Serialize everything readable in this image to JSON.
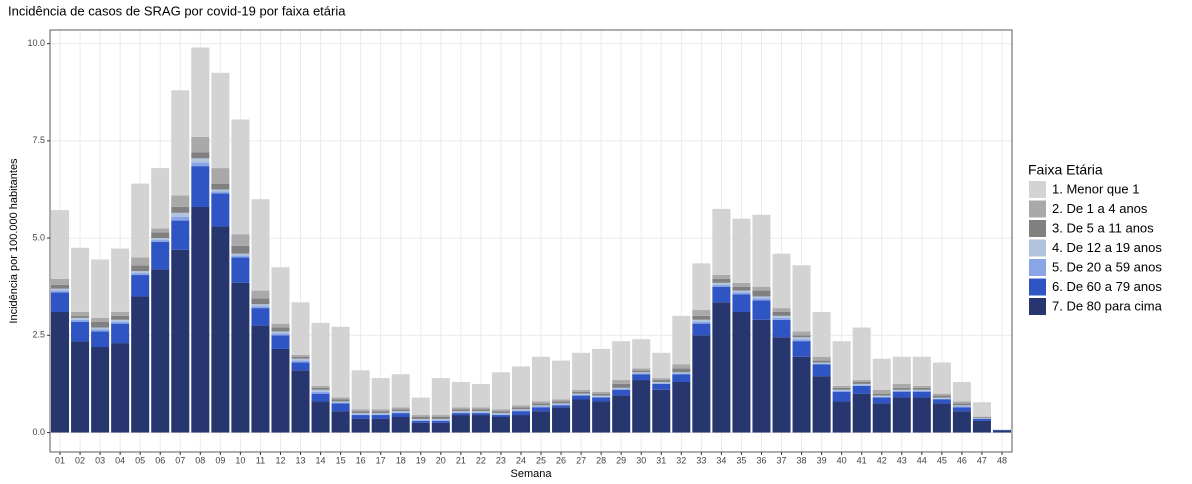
{
  "chart_data": {
    "type": "stacked-bar",
    "title": "Incidência de casos de SRAG por covid-19 por faixa etária",
    "x_label": "Semana",
    "y_label": "Incidência por 100.000 habitantes",
    "legend_title": "Faixa Etária",
    "legend": "right",
    "grid": true,
    "categories": [
      "01",
      "02",
      "03",
      "04",
      "05",
      "06",
      "07",
      "08",
      "09",
      "10",
      "11",
      "12",
      "13",
      "14",
      "15",
      "16",
      "17",
      "18",
      "19",
      "20",
      "21",
      "22",
      "23",
      "24",
      "25",
      "26",
      "27",
      "28",
      "29",
      "30",
      "31",
      "32",
      "33",
      "34",
      "35",
      "36",
      "37",
      "38",
      "39",
      "40",
      "41",
      "42",
      "43",
      "44",
      "45",
      "46",
      "47",
      "48"
    ],
    "ylim": [
      -0.5,
      10.35
    ],
    "yticks": [
      {
        "value": 0,
        "label": "0.0"
      },
      {
        "value": 2.5,
        "label": "2.5"
      },
      {
        "value": 5,
        "label": "5.0"
      },
      {
        "value": 7.5,
        "label": "7.5"
      },
      {
        "value": 10,
        "label": "10.0"
      }
    ],
    "series": [
      {
        "name": "1. Menor que 1",
        "color": "#d3d3d3",
        "values": [
          1.77,
          1.65,
          1.5,
          1.63,
          1.9,
          1.55,
          2.7,
          2.3,
          2.45,
          2.95,
          2.35,
          1.45,
          1.35,
          1.62,
          1.82,
          1.0,
          0.8,
          0.85,
          0.45,
          0.95,
          0.65,
          0.6,
          0.95,
          1.0,
          1.15,
          1.0,
          0.95,
          1.1,
          1.0,
          0.75,
          0.65,
          1.25,
          1.2,
          1.7,
          1.65,
          1.85,
          1.4,
          1.7,
          1.15,
          1.15,
          1.35,
          0.8,
          0.7,
          0.75,
          0.8,
          0.5,
          0.37,
          0.01
        ]
      },
      {
        "name": "2. De 1 a 4 anos",
        "color": "#a9a9a9",
        "values": [
          0.15,
          0.1,
          0.1,
          0.1,
          0.2,
          0.1,
          0.3,
          0.4,
          0.4,
          0.3,
          0.2,
          0.1,
          0.05,
          0.05,
          0.05,
          0.05,
          0.05,
          0.05,
          0.05,
          0.05,
          0.05,
          0.05,
          0.05,
          0.05,
          0.05,
          0.05,
          0.05,
          0.05,
          0.1,
          0.05,
          0.05,
          0.1,
          0.15,
          0.1,
          0.1,
          0.1,
          0.1,
          0.1,
          0.1,
          0.05,
          0.05,
          0.1,
          0.1,
          0.05,
          0.05,
          0.05,
          0.02,
          0
        ]
      },
      {
        "name": "3. De 5 a 11 anos",
        "color": "#808080",
        "values": [
          0.1,
          0.05,
          0.15,
          0.1,
          0.15,
          0.15,
          0.15,
          0.15,
          0.15,
          0.2,
          0.15,
          0.1,
          0.05,
          0.05,
          0.05,
          0.05,
          0.05,
          0.05,
          0.05,
          0.05,
          0.05,
          0.05,
          0.05,
          0.05,
          0.05,
          0.05,
          0.05,
          0.05,
          0.1,
          0.05,
          0.05,
          0.1,
          0.1,
          0.1,
          0.1,
          0.15,
          0.1,
          0.05,
          0.05,
          0.05,
          0.05,
          0.05,
          0.05,
          0.05,
          0.05,
          0.05,
          0.02,
          0
        ]
      },
      {
        "name": "4. De 12 a 19 anos",
        "color": "#b0c4de",
        "values": [
          0.05,
          0.05,
          0.05,
          0.05,
          0.05,
          0.05,
          0.1,
          0.1,
          0.05,
          0.05,
          0.05,
          0.05,
          0.05,
          0.05,
          0.03,
          0.03,
          0.03,
          0.03,
          0.03,
          0.03,
          0.03,
          0.03,
          0.03,
          0.03,
          0.03,
          0.03,
          0.03,
          0.03,
          0.03,
          0.03,
          0.03,
          0.03,
          0.05,
          0.05,
          0.05,
          0.05,
          0.05,
          0.05,
          0.03,
          0.03,
          0.03,
          0.03,
          0.03,
          0.03,
          0.03,
          0.03,
          0.01,
          0
        ]
      },
      {
        "name": "5. De 20 a 59 anos",
        "color": "#8aa5e6",
        "values": [
          0.05,
          0.05,
          0.05,
          0.05,
          0.05,
          0.05,
          0.1,
          0.1,
          0.05,
          0.05,
          0.05,
          0.05,
          0.05,
          0.05,
          0.02,
          0.02,
          0.02,
          0.02,
          0.02,
          0.02,
          0.02,
          0.02,
          0.02,
          0.02,
          0.02,
          0.02,
          0.02,
          0.02,
          0.02,
          0.02,
          0.02,
          0.02,
          0.05,
          0.05,
          0.05,
          0.05,
          0.05,
          0.05,
          0.02,
          0.02,
          0.02,
          0.02,
          0.02,
          0.02,
          0.02,
          0.02,
          0.01,
          0
        ]
      },
      {
        "name": "6. De 60 a 79 anos",
        "color": "#2f55c4",
        "values": [
          0.5,
          0.5,
          0.4,
          0.5,
          0.55,
          0.7,
          0.75,
          1.05,
          0.85,
          0.65,
          0.45,
          0.35,
          0.2,
          0.2,
          0.2,
          0.1,
          0.1,
          0.1,
          0.05,
          0.05,
          0.05,
          0.05,
          0.05,
          0.1,
          0.1,
          0.05,
          0.1,
          0.1,
          0.15,
          0.15,
          0.15,
          0.2,
          0.3,
          0.4,
          0.45,
          0.5,
          0.45,
          0.4,
          0.3,
          0.25,
          0.2,
          0.15,
          0.15,
          0.15,
          0.1,
          0.1,
          0.05,
          0.02
        ]
      },
      {
        "name": "7. De 80 para cima",
        "color": "#283670",
        "values": [
          3.1,
          2.35,
          2.2,
          2.3,
          3.5,
          4.2,
          4.7,
          5.8,
          5.3,
          3.85,
          2.75,
          2.15,
          1.6,
          0.8,
          0.55,
          0.35,
          0.35,
          0.4,
          0.25,
          0.25,
          0.45,
          0.45,
          0.4,
          0.45,
          0.55,
          0.65,
          0.85,
          0.8,
          0.95,
          1.35,
          1.1,
          1.3,
          2.5,
          3.35,
          3.1,
          2.9,
          2.45,
          1.95,
          1.45,
          0.8,
          1.0,
          0.75,
          0.9,
          0.9,
          0.75,
          0.55,
          0.3,
          0.05
        ]
      }
    ]
  }
}
